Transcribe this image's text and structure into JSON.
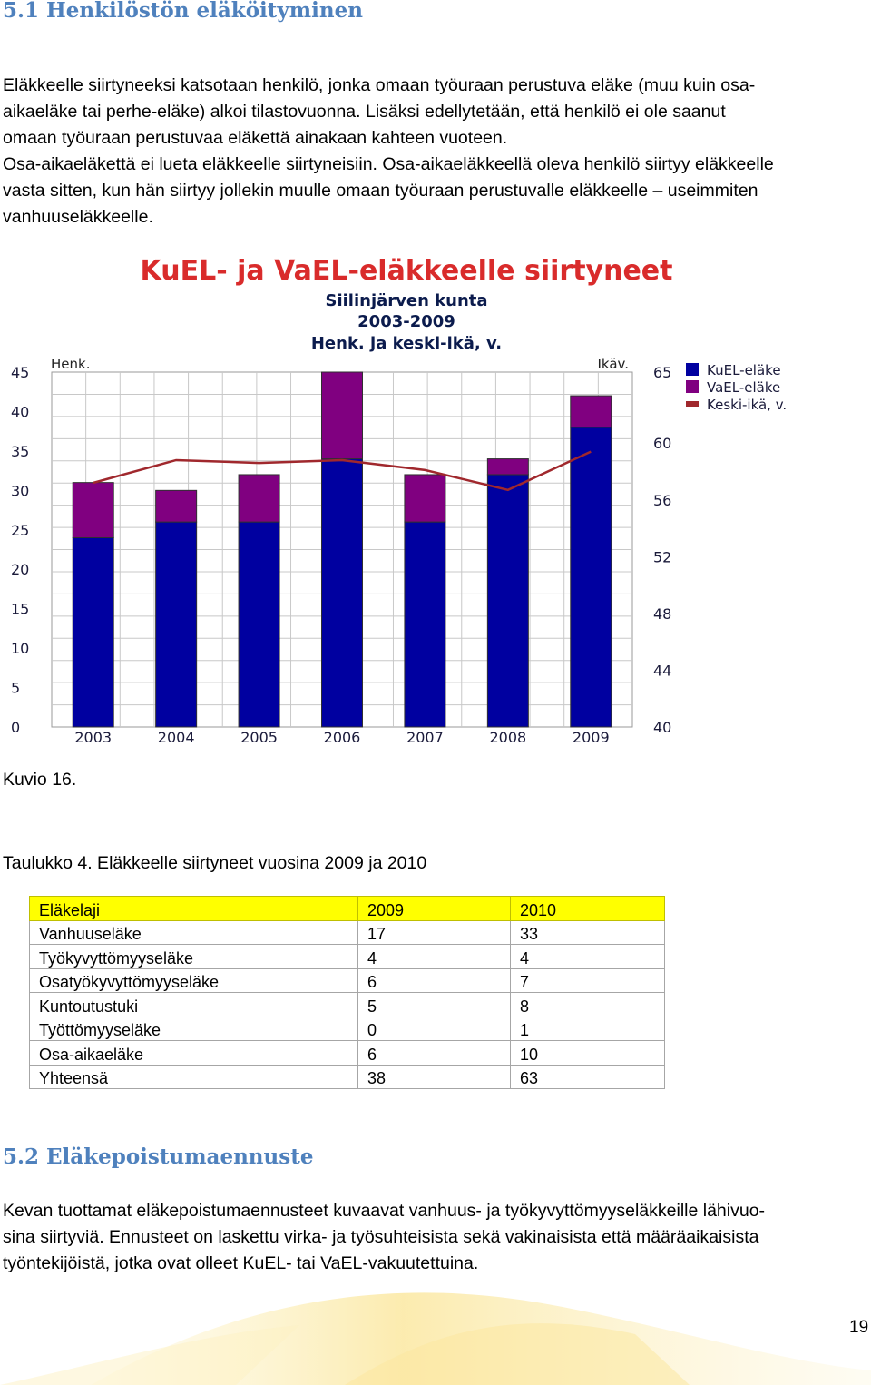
{
  "section1": {
    "heading": "5.1 Henkilöstön eläköityminen",
    "paragraph_lines": [
      "Eläkkeelle siirtyneeksi katsotaan henkilö, jonka omaan työuraan perustuva eläke (muu kuin osa-",
      "aikaeläke tai perhe-eläke) alkoi tilastovuonna. Lisäksi edellytetään, että henkilö ei ole saanut",
      "omaan työuraan perustuvaa eläkettä ainakaan kahteen vuoteen.",
      "Osa-aikaeläkettä ei lueta eläkkeelle siirtyneisiin. Osa-aikaeläkkeellä oleva henkilö siirtyy eläkkeelle",
      "vasta sitten, kun hän siirtyy jollekin muulle omaan työuraan perustuvalle eläkkeelle – useimmiten",
      "vanhuuseläkkeelle."
    ]
  },
  "chart_data": {
    "type": "bar",
    "title": "KuEL- ja VaEL-eläkkeelle siirtyneet",
    "subtitle_lines": [
      "Siilinjärven kunta",
      "2003-2009",
      "Henk. ja keski-ikä, v."
    ],
    "ylabel": "Henk.",
    "ylabel_right": "Ikäv.",
    "categories": [
      "2003",
      "2004",
      "2005",
      "2006",
      "2007",
      "2008",
      "2009"
    ],
    "stacked": true,
    "ylim": [
      0,
      45
    ],
    "yticks": [
      0,
      5,
      10,
      15,
      20,
      25,
      30,
      35,
      40,
      45
    ],
    "ylim_right": [
      40,
      65
    ],
    "yticks_right": [
      40,
      44,
      48,
      52,
      56,
      60,
      65
    ],
    "series": [
      {
        "name": "KuEL-eläke",
        "type": "bar",
        "axis": "left",
        "color": "#0000a0",
        "values": [
          24,
          26,
          26,
          34,
          26,
          32,
          38
        ]
      },
      {
        "name": "VaEL-eläke",
        "type": "bar",
        "axis": "left",
        "color": "#800080",
        "values": [
          7,
          4,
          6,
          11,
          6,
          2,
          4
        ]
      },
      {
        "name": "Keski-ikä, v.",
        "type": "line",
        "axis": "right",
        "color": "#a0282d",
        "values": [
          57.2,
          58.8,
          58.6,
          58.8,
          58.1,
          56.7,
          59.4
        ]
      }
    ],
    "legend_position": "top-right",
    "grid": true
  },
  "figure_caption": "Kuvio 16.",
  "table_caption": "Taulukko 4. Eläkkeelle siirtyneet vuosina 2009 ja 2010",
  "table": {
    "headers": [
      "Eläkelaji",
      "2009",
      "2010"
    ],
    "rows": [
      [
        "Vanhuuseläke",
        "17",
        "33"
      ],
      [
        "Työkyvyttömyyseläke",
        "4",
        "4"
      ],
      [
        "Osatyökyvyttömyyseläke",
        "6",
        "7"
      ],
      [
        "Kuntoutustuki",
        "5",
        "8"
      ],
      [
        "Työttömyyseläke",
        "0",
        "1"
      ],
      [
        "Osa-aikaeläke",
        "6",
        "10"
      ],
      [
        "Yhteensä",
        "38",
        "63"
      ]
    ],
    "header_color": "#ffff00"
  },
  "section2": {
    "heading": "5.2 Eläkepoistumaennuste",
    "paragraph_lines": [
      "Kevan tuottamat eläkepoistumaennusteet kuvaavat vanhuus- ja työkyvyttömyyseläkkeille lähivuo-",
      "sina siirtyviä. Ennusteet on laskettu virka- ja työsuhteisista sekä vakinaisista että määräaikaisista",
      "työntekijöistä, jotka ovat olleet KuEL- tai VaEL-vakuutettuina."
    ]
  },
  "page_number": "19"
}
